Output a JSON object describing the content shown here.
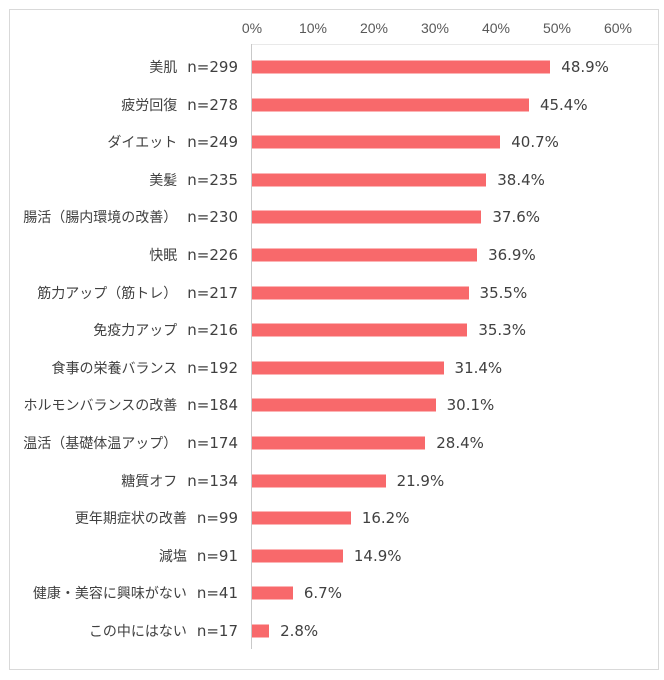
{
  "chart_data": {
    "type": "bar",
    "orientation": "horizontal",
    "title": "",
    "x_ticks": [
      "0%",
      "10%",
      "20%",
      "30%",
      "40%",
      "50%",
      "60%"
    ],
    "xlim": [
      0,
      60
    ],
    "grid": false,
    "legend": false,
    "bar_color": "#F8696B",
    "rows": [
      {
        "category": "美肌",
        "n": "n=299",
        "value": 48.9,
        "label": "48.9%"
      },
      {
        "category": "疲労回復",
        "n": "n=278",
        "value": 45.4,
        "label": "45.4%"
      },
      {
        "category": "ダイエット",
        "n": "n=249",
        "value": 40.7,
        "label": "40.7%"
      },
      {
        "category": "美髪",
        "n": "n=235",
        "value": 38.4,
        "label": "38.4%"
      },
      {
        "category": "腸活（腸内環境の改善）",
        "n": "n=230",
        "value": 37.6,
        "label": "37.6%"
      },
      {
        "category": "快眠",
        "n": "n=226",
        "value": 36.9,
        "label": "36.9%"
      },
      {
        "category": "筋力アップ（筋トレ）",
        "n": "n=217",
        "value": 35.5,
        "label": "35.5%"
      },
      {
        "category": "免疫力アップ",
        "n": "n=216",
        "value": 35.3,
        "label": "35.3%"
      },
      {
        "category": "食事の栄養バランス",
        "n": "n=192",
        "value": 31.4,
        "label": "31.4%"
      },
      {
        "category": "ホルモンバランスの改善",
        "n": "n=184",
        "value": 30.1,
        "label": "30.1%"
      },
      {
        "category": "温活（基礎体温アップ）",
        "n": "n=174",
        "value": 28.4,
        "label": "28.4%"
      },
      {
        "category": "糖質オフ",
        "n": "n=134",
        "value": 21.9,
        "label": "21.9%"
      },
      {
        "category": "更年期症状の改善",
        "n": "n=99",
        "value": 16.2,
        "label": "16.2%"
      },
      {
        "category": "減塩",
        "n": "n=91",
        "value": 14.9,
        "label": "14.9%"
      },
      {
        "category": "健康・美容に興味がない",
        "n": "n=41",
        "value": 6.7,
        "label": "6.7%"
      },
      {
        "category": "この中にはない",
        "n": "n=17",
        "value": 2.8,
        "label": "2.8%"
      }
    ]
  }
}
